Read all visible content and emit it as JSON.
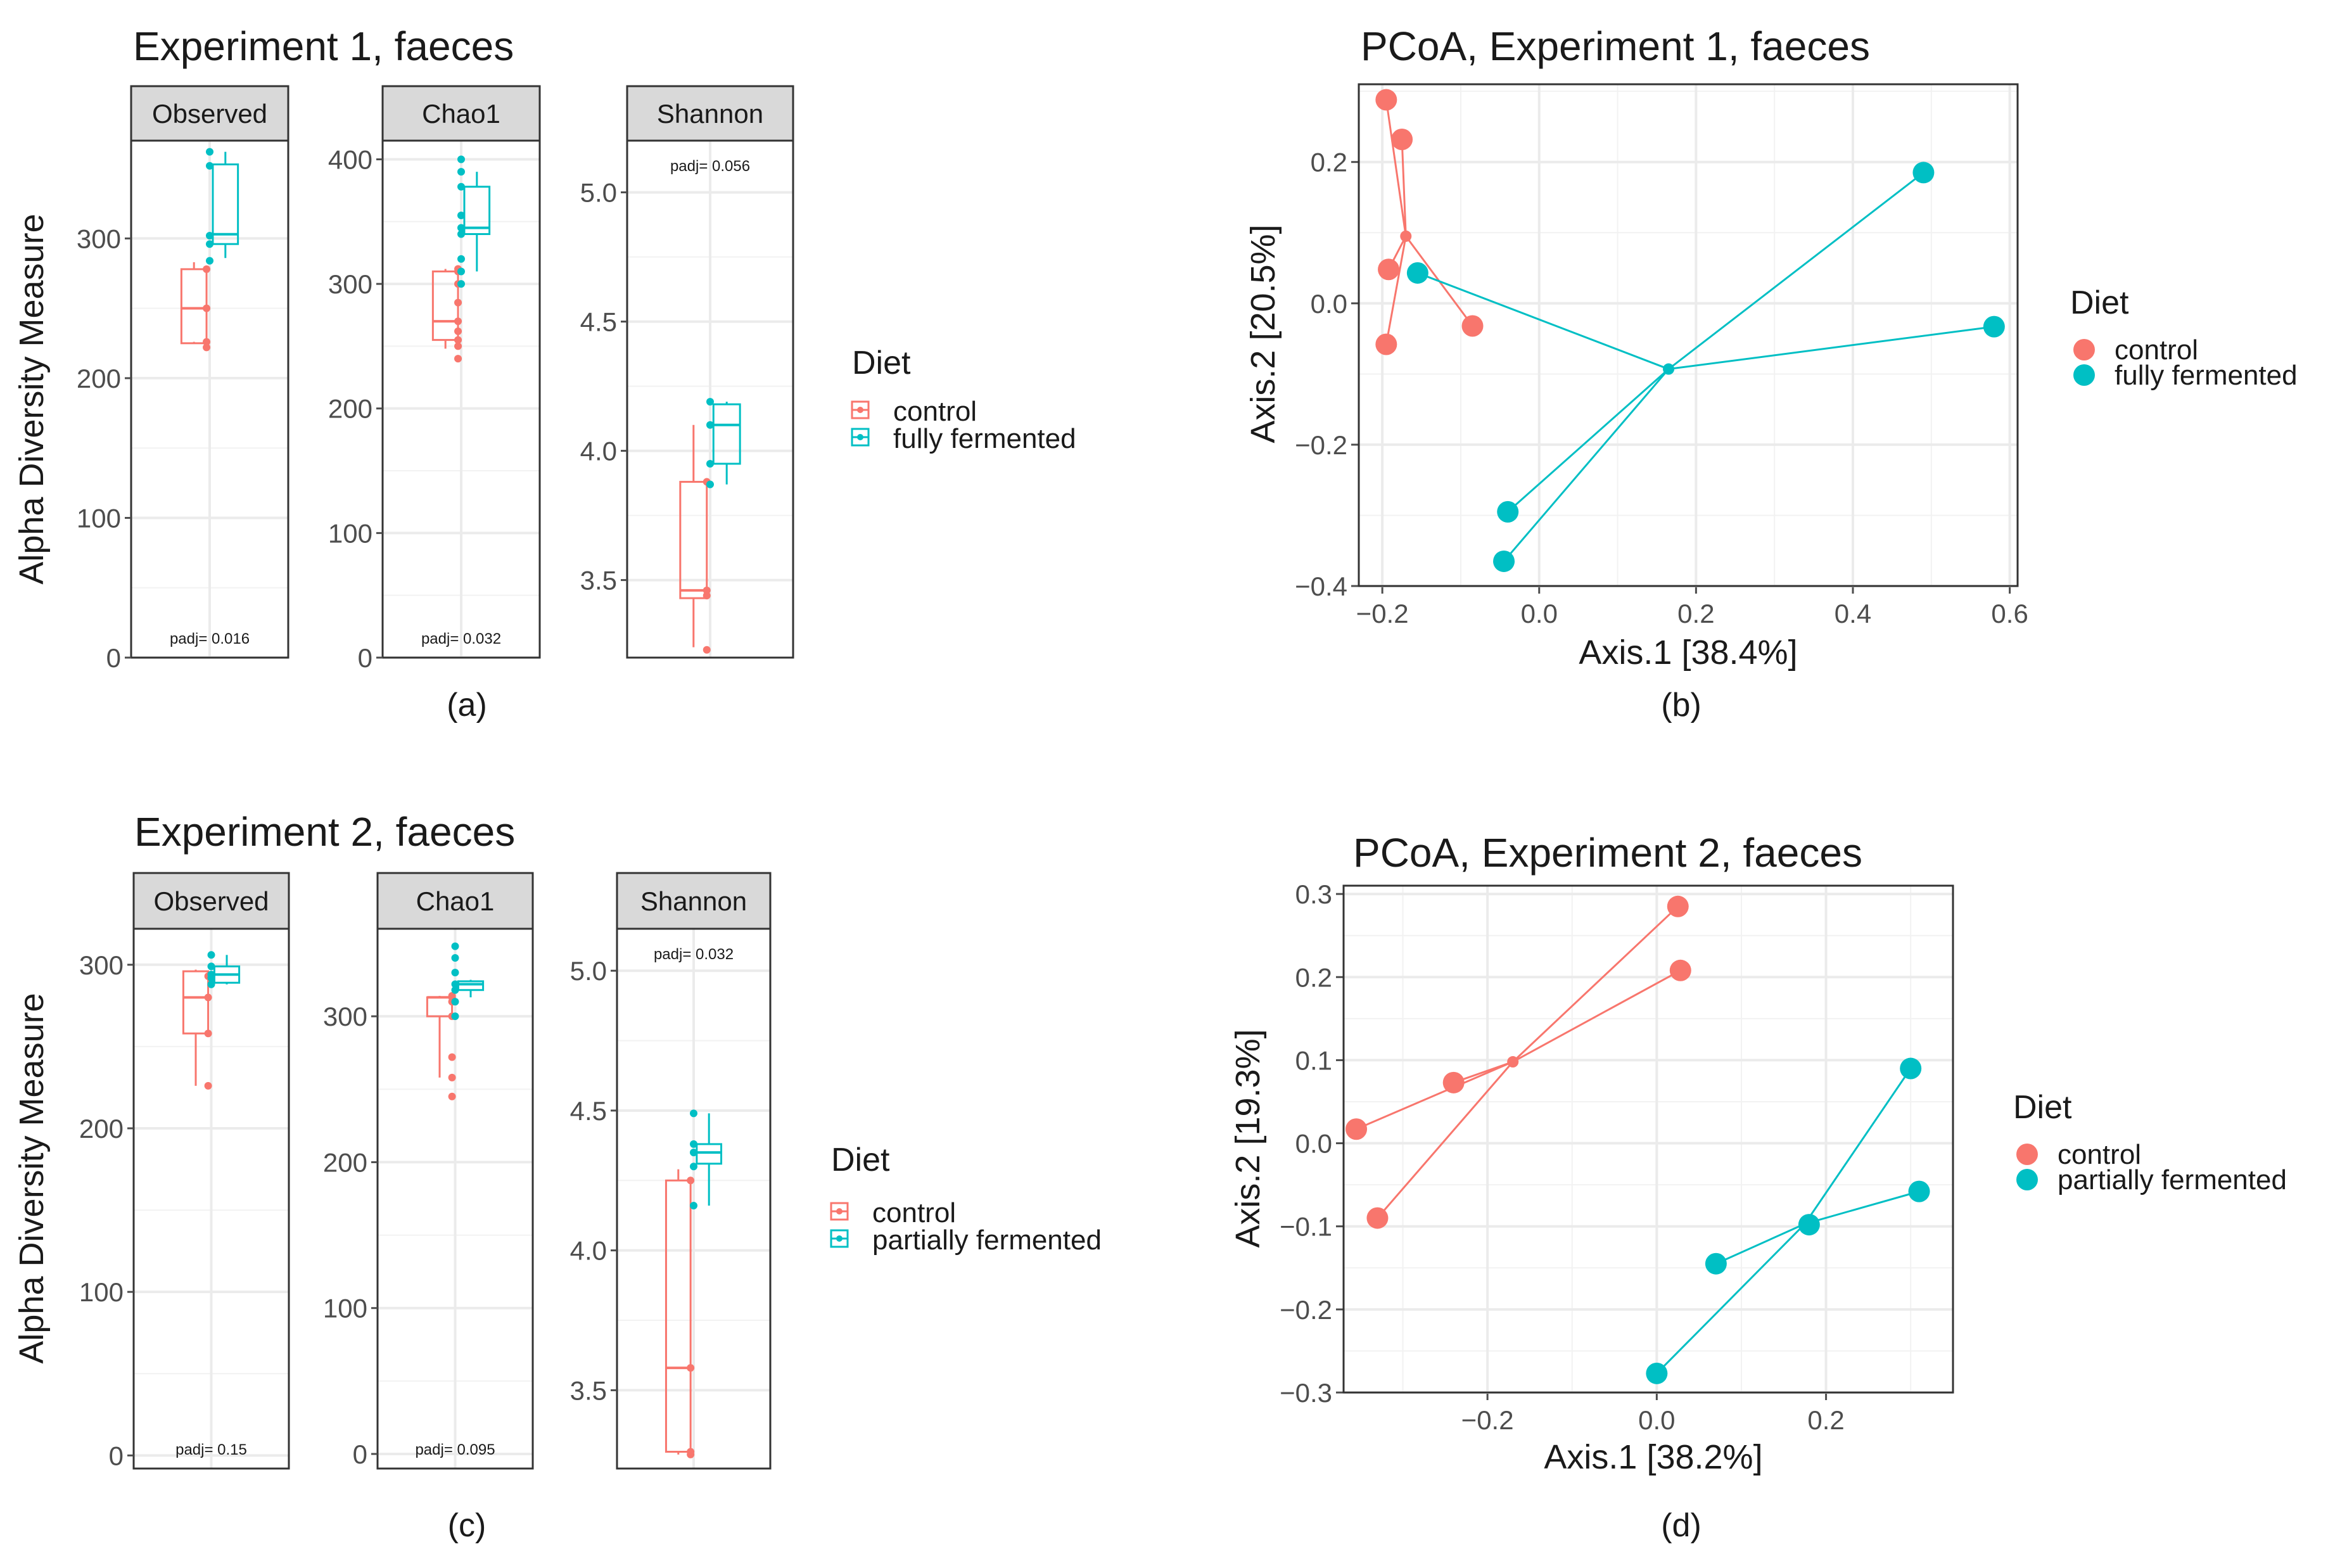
{
  "colors": {
    "control": "#F8766D",
    "treatment": "#00BFC4",
    "strip": "#D9D9D9",
    "grid": "#EBEBEB",
    "text": "#1A1A1A",
    "axis": "#4D4D4D"
  },
  "panel_labels": [
    "(a)",
    "(b)",
    "(c)",
    "(d)"
  ],
  "chart_data": [
    {
      "id": "a",
      "type": "box",
      "title": "Experiment 1, faeces",
      "ylabel": "Alpha Diversity Measure",
      "legend": {
        "title": "Diet",
        "entries": [
          "control",
          "fully fermented"
        ]
      },
      "facets": [
        {
          "name": "Observed",
          "ylim": [
            0,
            370
          ],
          "ticks": [
            0,
            100,
            200,
            300
          ],
          "padj": "padj= 0.016",
          "padj_pos": "bottom",
          "groups": [
            {
              "name": "control",
              "q": [
                226,
                225,
                250,
                278,
                283
              ],
              "points": [
                222,
                226,
                250,
                278
              ]
            },
            {
              "name": "fully fermented",
              "q": [
                286,
                296,
                303,
                353,
                362
              ],
              "points": [
                284,
                296,
                302,
                352,
                362
              ]
            }
          ]
        },
        {
          "name": "Chao1",
          "ylim": [
            0,
            415
          ],
          "ticks": [
            0,
            100,
            200,
            300,
            400
          ],
          "padj": "padj= 0.032",
          "padj_pos": "bottom",
          "groups": [
            {
              "name": "control",
              "q": [
                248,
                255,
                270,
                310,
                312
              ],
              "points": [
                240,
                250,
                255,
                262,
                270,
                285,
                300,
                310,
                312
              ]
            },
            {
              "name": "fully fermented",
              "q": [
                310,
                340,
                345,
                378,
                390
              ],
              "points": [
                300,
                310,
                320,
                340,
                345,
                355,
                378,
                390,
                400
              ]
            }
          ]
        },
        {
          "name": "Shannon",
          "ylim": [
            3.2,
            5.2
          ],
          "ticks": [
            3.5,
            4.0,
            4.5,
            5.0
          ],
          "padj": "padj= 0.056",
          "padj_pos": "top",
          "groups": [
            {
              "name": "control",
              "q": [
                3.24,
                3.43,
                3.46,
                3.88,
                4.1
              ],
              "points": [
                3.23,
                3.44,
                3.46,
                3.88
              ]
            },
            {
              "name": "fully fermented",
              "q": [
                3.87,
                3.95,
                4.1,
                4.18,
                4.19
              ],
              "points": [
                3.87,
                3.95,
                4.1,
                4.19
              ]
            }
          ]
        }
      ]
    },
    {
      "id": "b",
      "type": "scatter",
      "title": "PCoA, Experiment 1, faeces",
      "xlabel": "Axis.1   [38.4%]",
      "ylabel": "Axis.2   [20.5%]",
      "xlim": [
        -0.23,
        0.61
      ],
      "ylim": [
        -0.4,
        0.31
      ],
      "xticks": [
        -0.2,
        0.0,
        0.2,
        0.4,
        0.6
      ],
      "yticks": [
        -0.4,
        -0.2,
        0.0,
        0.2
      ],
      "xtick_labels": [
        "−0.2",
        "0.0",
        "0.2",
        "0.4",
        "0.6"
      ],
      "ytick_labels": [
        "−0.4",
        "−0.2",
        "0.0",
        "0.2"
      ],
      "legend": {
        "title": "Diet",
        "entries": [
          "control",
          "fully fermented"
        ]
      },
      "series": [
        {
          "name": "control",
          "centroid": [
            -0.17,
            0.095
          ],
          "points": [
            [
              -0.195,
              0.288
            ],
            [
              -0.175,
              0.232
            ],
            [
              -0.192,
              0.048
            ],
            [
              -0.195,
              -0.058
            ],
            [
              -0.085,
              -0.032
            ]
          ]
        },
        {
          "name": "fully fermented",
          "centroid": [
            0.165,
            -0.093
          ],
          "points": [
            [
              -0.155,
              0.043
            ],
            [
              0.49,
              0.185
            ],
            [
              0.58,
              -0.033
            ],
            [
              -0.04,
              -0.295
            ],
            [
              -0.045,
              -0.365
            ]
          ]
        }
      ]
    },
    {
      "id": "c",
      "type": "box",
      "title": "Experiment 2, faeces",
      "ylabel": "Alpha Diversity Measure",
      "legend": {
        "title": "Diet",
        "entries": [
          "control",
          "partially fermented"
        ]
      },
      "facets": [
        {
          "name": "Observed",
          "ylim": [
            -8,
            322
          ],
          "ticks": [
            0,
            100,
            200,
            300
          ],
          "padj": "padj= 0.15",
          "padj_pos": "bottom",
          "groups": [
            {
              "name": "control",
              "q": [
                226,
                258,
                280,
                296,
                297
              ],
              "points": [
                226,
                258,
                280,
                293
              ]
            },
            {
              "name": "partially fermented",
              "q": [
                288,
                289,
                294,
                299,
                306
              ],
              "points": [
                288,
                292,
                294,
                299,
                306
              ]
            }
          ]
        },
        {
          "name": "Chao1",
          "ylim": [
            -10,
            360
          ],
          "ticks": [
            0,
            100,
            200,
            300
          ],
          "padj": "padj= 0.095",
          "padj_pos": "bottom",
          "groups": [
            {
              "name": "control",
              "q": [
                258,
                300,
                313,
                313,
                314
              ],
              "points": [
                245,
                258,
                272,
                300,
                310,
                313,
                314
              ]
            },
            {
              "name": "partially fermented",
              "q": [
                313,
                318,
                322,
                324,
                325
              ],
              "points": [
                300,
                310,
                318,
                322,
                330,
                340,
                348
              ]
            }
          ]
        },
        {
          "name": "Shannon",
          "ylim": [
            3.22,
            5.15
          ],
          "ticks": [
            3.5,
            4.0,
            4.5,
            5.0
          ],
          "padj": "padj= 0.032",
          "padj_pos": "top",
          "groups": [
            {
              "name": "control",
              "q": [
                3.27,
                3.28,
                3.58,
                4.25,
                4.29
              ],
              "points": [
                3.27,
                3.28,
                3.58,
                4.25
              ]
            },
            {
              "name": "partially fermented",
              "q": [
                4.16,
                4.31,
                4.35,
                4.38,
                4.49
              ],
              "points": [
                4.16,
                4.3,
                4.35,
                4.38,
                4.49
              ]
            }
          ]
        }
      ]
    },
    {
      "id": "d",
      "type": "scatter",
      "title": "PCoA, Experiment 2, faeces",
      "xlabel": "Axis.1   [38.2%]",
      "ylabel": "Axis.2   [19.3%]",
      "xlim": [
        -0.37,
        0.35
      ],
      "ylim": [
        -0.3,
        0.31
      ],
      "xticks": [
        -0.2,
        0.0,
        0.2
      ],
      "yticks": [
        -0.3,
        -0.2,
        -0.1,
        0.0,
        0.1,
        0.2,
        0.3
      ],
      "xtick_labels": [
        "−0.2",
        "0.0",
        "0.2"
      ],
      "ytick_labels": [
        "−0.3",
        "−0.2",
        "−0.1",
        "0.0",
        "0.1",
        "0.2",
        "0.3"
      ],
      "legend": {
        "title": "Diet",
        "entries": [
          "control",
          "partially fermented"
        ]
      },
      "series": [
        {
          "name": "control",
          "centroid": [
            -0.17,
            0.098
          ],
          "points": [
            [
              0.025,
              0.285
            ],
            [
              0.028,
              0.208
            ],
            [
              -0.24,
              0.073
            ],
            [
              -0.355,
              0.017
            ],
            [
              -0.33,
              -0.09
            ]
          ]
        },
        {
          "name": "partially fermented",
          "centroid": [
            0.175,
            -0.097
          ],
          "points": [
            [
              0.3,
              0.09
            ],
            [
              0.31,
              -0.058
            ],
            [
              0.18,
              -0.098
            ],
            [
              0.07,
              -0.145
            ],
            [
              0.0,
              -0.277
            ]
          ]
        }
      ]
    }
  ]
}
